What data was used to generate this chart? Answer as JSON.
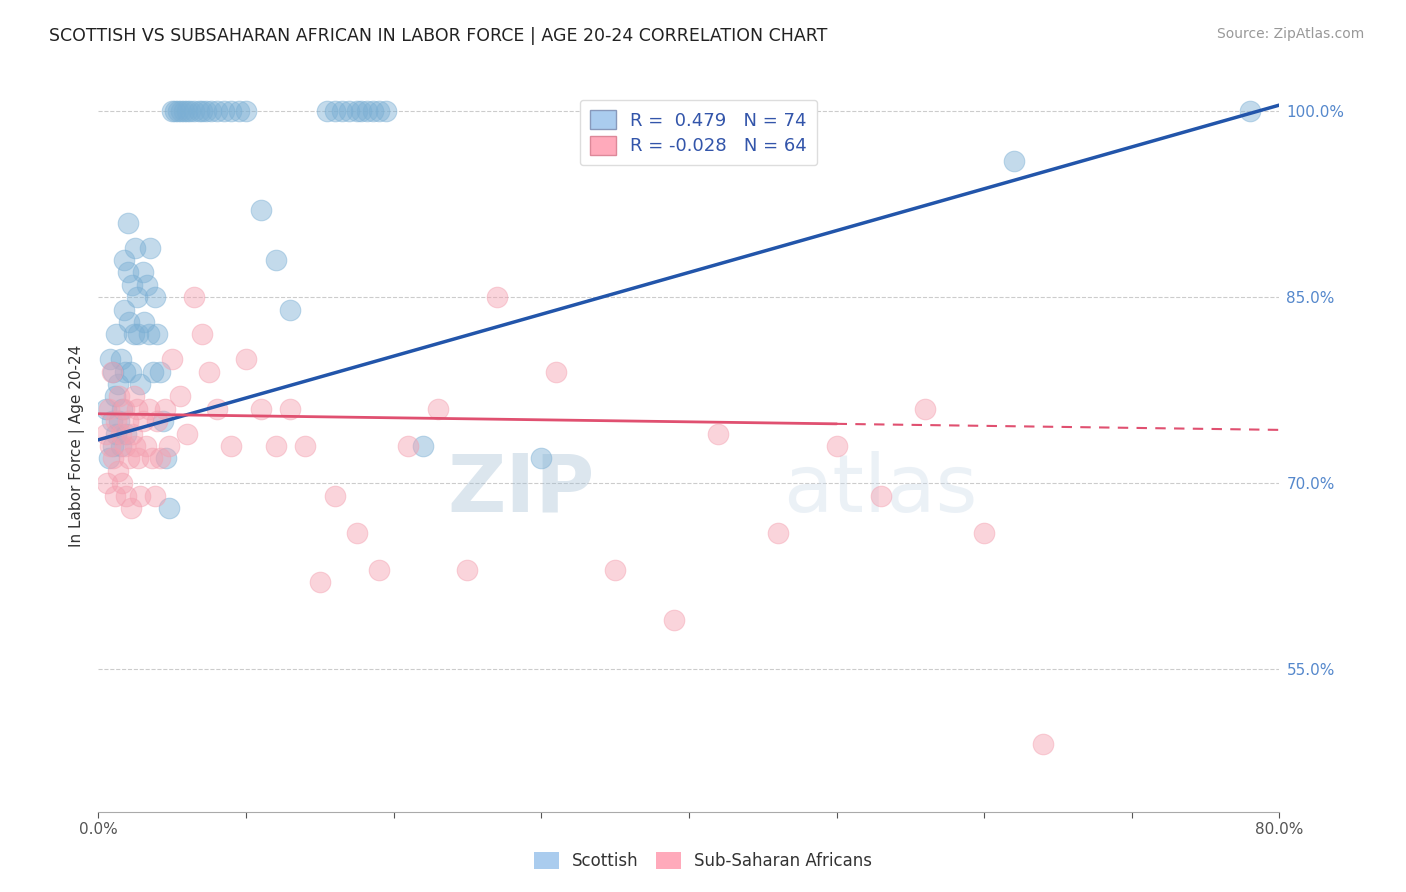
{
  "title": "SCOTTISH VS SUBSAHARAN AFRICAN IN LABOR FORCE | AGE 20-24 CORRELATION CHART",
  "source": "Source: ZipAtlas.com",
  "ylabel": "In Labor Force | Age 20-24",
  "y_tick_values_right": [
    1.0,
    0.85,
    0.7,
    0.55
  ],
  "x_min": 0.0,
  "x_max": 0.8,
  "y_min": 0.435,
  "y_max": 1.025,
  "blue_color": "#7BAFD4",
  "pink_color": "#F4A0B0",
  "blue_line_color": "#2255AA",
  "pink_line_color": "#E05070",
  "watermark_color": "#C8D8E8",
  "background_color": "#FFFFFF",
  "blue_trend_x0": 0.0,
  "blue_trend_y0": 0.735,
  "blue_trend_x1": 0.8,
  "blue_trend_y1": 1.005,
  "pink_trend_x0": 0.0,
  "pink_trend_y0": 0.756,
  "pink_trend_x1": 0.8,
  "pink_trend_y1": 0.743,
  "scatter_blue_x": [
    0.005,
    0.007,
    0.008,
    0.009,
    0.01,
    0.01,
    0.011,
    0.012,
    0.012,
    0.013,
    0.014,
    0.015,
    0.015,
    0.016,
    0.017,
    0.017,
    0.018,
    0.019,
    0.02,
    0.02,
    0.021,
    0.022,
    0.023,
    0.024,
    0.025,
    0.026,
    0.027,
    0.028,
    0.03,
    0.031,
    0.033,
    0.034,
    0.035,
    0.037,
    0.038,
    0.04,
    0.042,
    0.044,
    0.046,
    0.048,
    0.05,
    0.052,
    0.054,
    0.056,
    0.058,
    0.06,
    0.062,
    0.065,
    0.068,
    0.07,
    0.073,
    0.076,
    0.08,
    0.085,
    0.09,
    0.095,
    0.1,
    0.11,
    0.12,
    0.13,
    0.155,
    0.16,
    0.165,
    0.17,
    0.175,
    0.178,
    0.182,
    0.186,
    0.19,
    0.195,
    0.22,
    0.3,
    0.62,
    0.78
  ],
  "scatter_blue_y": [
    0.76,
    0.72,
    0.8,
    0.75,
    0.73,
    0.79,
    0.77,
    0.74,
    0.82,
    0.78,
    0.75,
    0.73,
    0.8,
    0.76,
    0.84,
    0.88,
    0.79,
    0.74,
    0.91,
    0.87,
    0.83,
    0.79,
    0.86,
    0.82,
    0.89,
    0.85,
    0.82,
    0.78,
    0.87,
    0.83,
    0.86,
    0.82,
    0.89,
    0.79,
    0.85,
    0.82,
    0.79,
    0.75,
    0.72,
    0.68,
    1.0,
    1.0,
    1.0,
    1.0,
    1.0,
    1.0,
    1.0,
    1.0,
    1.0,
    1.0,
    1.0,
    1.0,
    1.0,
    1.0,
    1.0,
    1.0,
    1.0,
    0.92,
    0.88,
    0.84,
    1.0,
    1.0,
    1.0,
    1.0,
    1.0,
    1.0,
    1.0,
    1.0,
    1.0,
    1.0,
    0.73,
    0.72,
    0.96,
    1.0
  ],
  "scatter_pink_x": [
    0.005,
    0.006,
    0.007,
    0.008,
    0.009,
    0.01,
    0.011,
    0.012,
    0.013,
    0.014,
    0.015,
    0.016,
    0.017,
    0.018,
    0.019,
    0.02,
    0.021,
    0.022,
    0.023,
    0.024,
    0.025,
    0.026,
    0.027,
    0.028,
    0.03,
    0.032,
    0.034,
    0.036,
    0.038,
    0.04,
    0.042,
    0.045,
    0.048,
    0.05,
    0.055,
    0.06,
    0.065,
    0.07,
    0.075,
    0.08,
    0.09,
    0.1,
    0.11,
    0.12,
    0.13,
    0.14,
    0.15,
    0.16,
    0.175,
    0.19,
    0.21,
    0.23,
    0.25,
    0.27,
    0.31,
    0.35,
    0.39,
    0.42,
    0.46,
    0.5,
    0.53,
    0.56,
    0.6,
    0.64
  ],
  "scatter_pink_y": [
    0.74,
    0.7,
    0.76,
    0.73,
    0.79,
    0.72,
    0.69,
    0.75,
    0.71,
    0.77,
    0.74,
    0.7,
    0.76,
    0.73,
    0.69,
    0.75,
    0.72,
    0.68,
    0.74,
    0.77,
    0.73,
    0.76,
    0.72,
    0.69,
    0.75,
    0.73,
    0.76,
    0.72,
    0.69,
    0.75,
    0.72,
    0.76,
    0.73,
    0.8,
    0.77,
    0.74,
    0.85,
    0.82,
    0.79,
    0.76,
    0.73,
    0.8,
    0.76,
    0.73,
    0.76,
    0.73,
    0.62,
    0.69,
    0.66,
    0.63,
    0.73,
    0.76,
    0.63,
    0.85,
    0.79,
    0.63,
    0.59,
    0.74,
    0.66,
    0.73,
    0.69,
    0.76,
    0.66,
    0.49
  ]
}
